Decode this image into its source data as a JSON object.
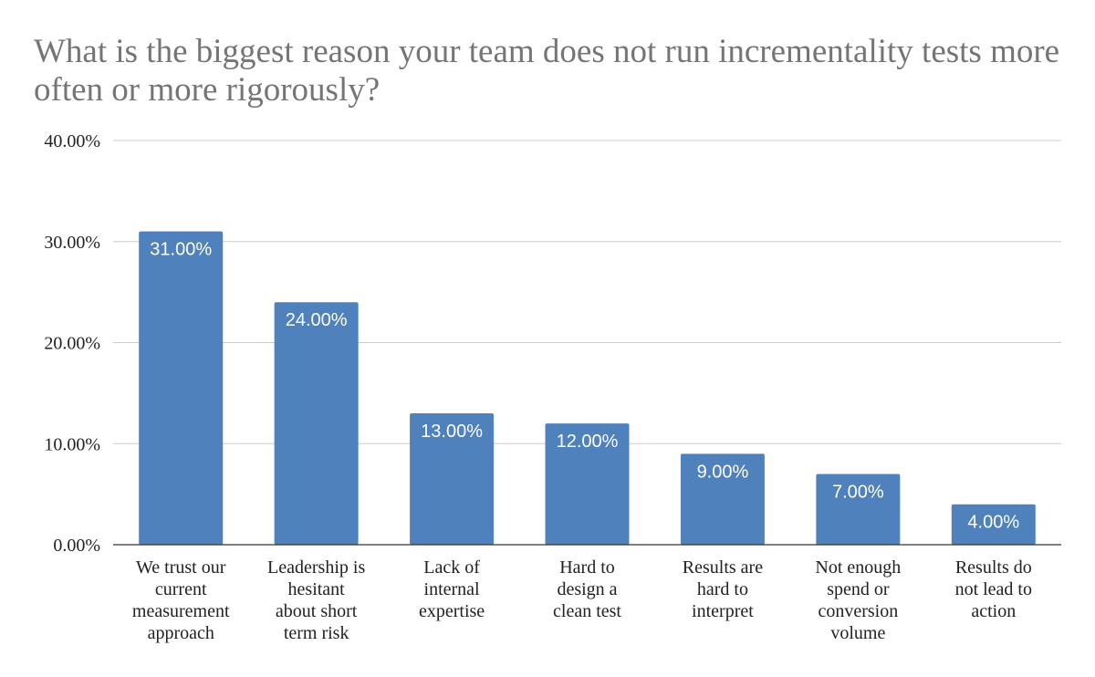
{
  "chart_data": {
    "type": "bar",
    "title": "What is the biggest reason your team does not run incrementality tests more often or more rigorously?",
    "xlabel": "",
    "ylabel": "",
    "ylim": [
      0,
      40
    ],
    "yticks": [
      0,
      10,
      20,
      30,
      40
    ],
    "ytick_labels": [
      "0.00%",
      "10.00%",
      "20.00%",
      "30.00%",
      "40.00%"
    ],
    "grid": true,
    "legend": "none",
    "bar_color": "#4f81bd",
    "categories": [
      [
        "We trust our",
        "current",
        "measurement",
        "approach"
      ],
      [
        "Leadership is",
        "hesitant",
        "about short",
        "term risk"
      ],
      [
        "Lack of",
        "internal",
        "expertise"
      ],
      [
        "Hard to",
        "design a",
        "clean test"
      ],
      [
        "Results are",
        "hard to",
        "interpret"
      ],
      [
        "Not enough",
        "spend or",
        "conversion",
        "volume"
      ],
      [
        "Results do",
        "not lead to",
        "action"
      ]
    ],
    "values": [
      31,
      24,
      13,
      12,
      9,
      7,
      4
    ],
    "data_labels": [
      "31.00%",
      "24.00%",
      "13.00%",
      "12.00%",
      "9.00%",
      "7.00%",
      "4.00%"
    ]
  }
}
